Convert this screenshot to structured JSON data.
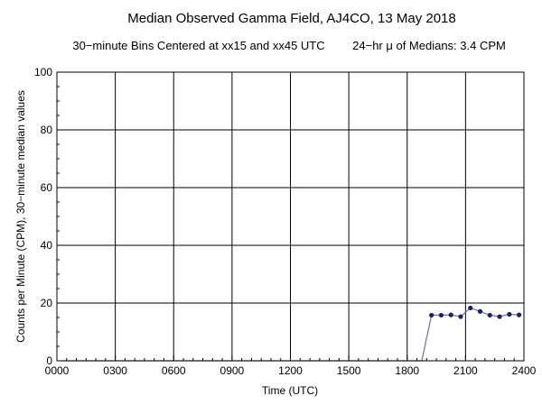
{
  "chart_data": {
    "type": "line",
    "title": "Median Observed Gamma Field, AJ4CO, 13 May 2018",
    "subtitle_left": "30−minute Bins Centered at xx15 and xx45 UTC",
    "subtitle_right": "24−hr μ of Medians: 3.4 CPM",
    "xlabel": "Time (UTC)",
    "ylabel": "Counts per Minute (CPM), 30−minute median values",
    "xlim": [
      0,
      24
    ],
    "ylim": [
      0,
      100
    ],
    "grid": true,
    "x_ticks": [
      {
        "value": 0,
        "label": "0000"
      },
      {
        "value": 3,
        "label": "0300"
      },
      {
        "value": 6,
        "label": "0600"
      },
      {
        "value": 9,
        "label": "0900"
      },
      {
        "value": 12,
        "label": "1200"
      },
      {
        "value": 15,
        "label": "1500"
      },
      {
        "value": 18,
        "label": "1800"
      },
      {
        "value": 21,
        "label": "2100"
      },
      {
        "value": 24,
        "label": "2400"
      }
    ],
    "y_ticks": [
      {
        "value": 0,
        "label": "0"
      },
      {
        "value": 20,
        "label": "20"
      },
      {
        "value": 40,
        "label": "40"
      },
      {
        "value": 60,
        "label": "60"
      },
      {
        "value": 80,
        "label": "80"
      },
      {
        "value": 100,
        "label": "100"
      }
    ],
    "line_color": "#6f6faf",
    "marker_color": "#1e1e6e",
    "series": [
      {
        "x": [
          0.25,
          0.75,
          1.25,
          1.75,
          2.25,
          2.75,
          3.25,
          3.75,
          4.25,
          4.75,
          5.25,
          5.75,
          6.25,
          6.75,
          7.25,
          7.75,
          8.25,
          8.75,
          9.25,
          9.75,
          10.25,
          10.75,
          11.25,
          11.75,
          12.25,
          12.75,
          13.25,
          13.75,
          14.25,
          14.75,
          15.25,
          15.75,
          16.25,
          16.75,
          17.25,
          17.75,
          18.25,
          18.75,
          19.25,
          19.75,
          20.25,
          20.75,
          21.25,
          21.75,
          22.25,
          22.75,
          23.25,
          23.75
        ],
        "y": [
          0,
          0,
          0,
          0,
          0,
          0,
          0,
          0,
          0,
          0,
          0,
          0,
          0,
          0,
          0,
          0,
          0,
          0,
          0,
          0,
          0,
          0,
          0,
          0,
          0,
          0,
          0,
          0,
          0,
          0,
          0,
          0,
          0,
          0,
          0,
          0,
          0,
          0,
          15.8,
          15.8,
          15.9,
          15.3,
          18.3,
          17.1,
          15.8,
          15.3,
          16.1,
          15.9
        ]
      }
    ]
  }
}
